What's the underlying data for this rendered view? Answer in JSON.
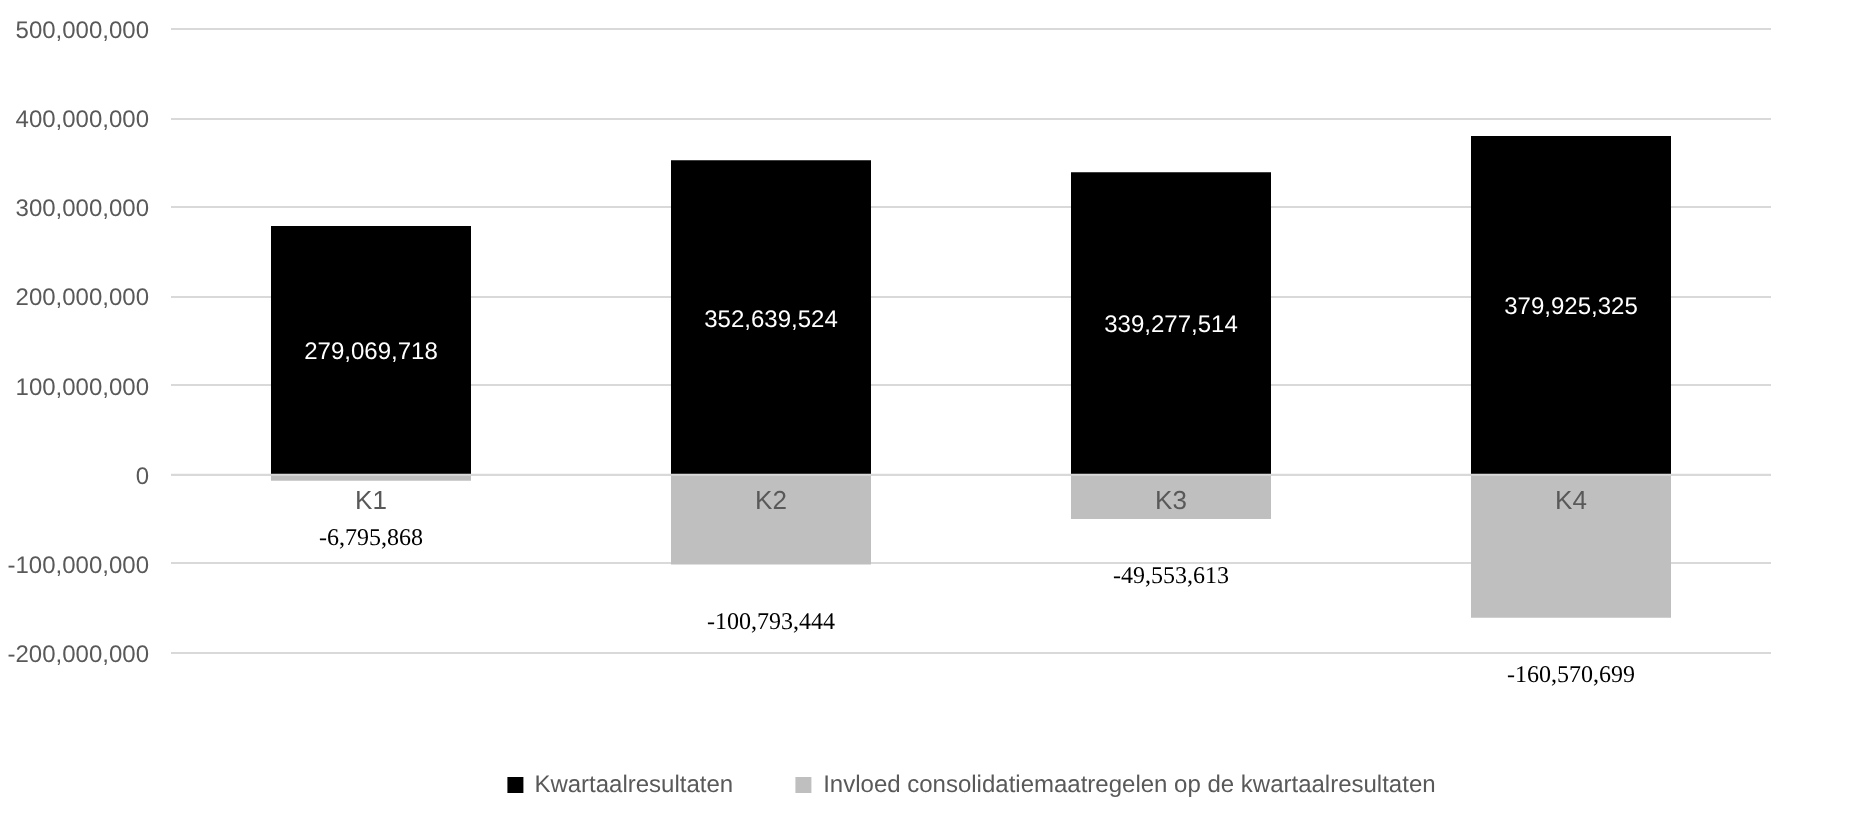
{
  "chart_data": {
    "type": "bar",
    "stacked": true,
    "categories": [
      "K1",
      "K2",
      "K3",
      "K4"
    ],
    "series": [
      {
        "name": "Kwartaalresultaten",
        "color": "#000000",
        "values": [
          279069718,
          352639524,
          339277514,
          379925325
        ],
        "value_labels": [
          "279,069,718",
          "352,639,524",
          "339,277,514",
          "379,925,325"
        ]
      },
      {
        "name": "Invloed consolidatiemaatregelen op de kwartaalresultaten",
        "color": "#bfbfbf",
        "values": [
          -6795868,
          -100793444,
          -49553613,
          -160570699
        ],
        "value_labels": [
          "-6,795,868",
          "-100,793,444",
          "-49,553,613",
          "-160,570,699"
        ]
      }
    ],
    "ylim": [
      -200000000,
      500000000
    ],
    "yticks": [
      {
        "value": -200000000,
        "label": "-200,000,000"
      },
      {
        "value": -100000000,
        "label": "-100,000,000"
      },
      0,
      {
        "value": 100000000,
        "label": "100,000,000"
      },
      {
        "value": 200000000,
        "label": "200,000,000"
      },
      {
        "value": 300000000,
        "label": "300,000,000"
      },
      {
        "value": 400000000,
        "label": "400,000,000"
      },
      {
        "value": 500000000,
        "label": "500,000,000"
      }
    ],
    "grid": "y",
    "legend": "bottom"
  }
}
